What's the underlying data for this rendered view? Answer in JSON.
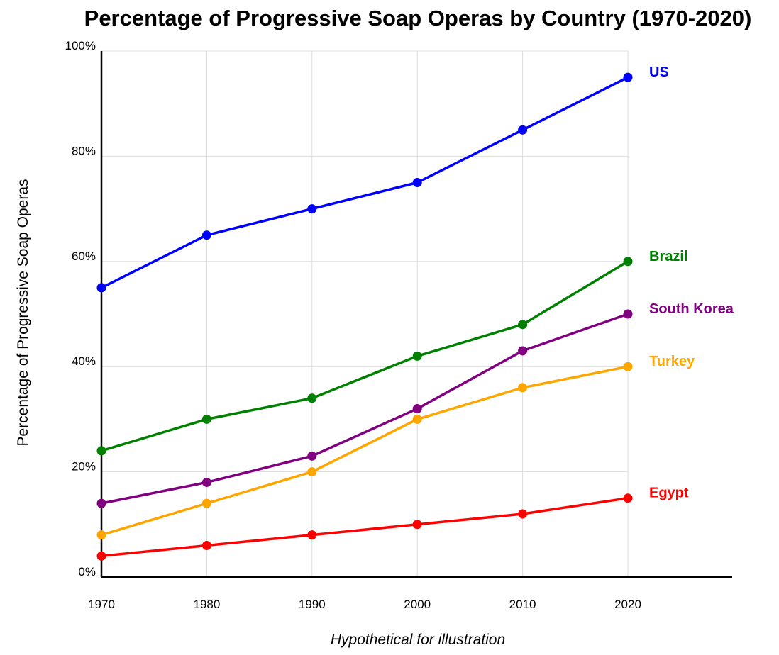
{
  "chart_data": {
    "type": "line",
    "title": "Percentage of Progressive Soap Operas by Country (1970-2020)",
    "xlabel": "",
    "ylabel": "Percentage of Progressive Soap Operas",
    "caption": "Hypothetical for illustration",
    "x": [
      1970,
      1980,
      1990,
      2000,
      2010,
      2020
    ],
    "xlim": [
      1970,
      2030
    ],
    "ylim": [
      0,
      100
    ],
    "ytick_values": [
      0,
      20,
      40,
      60,
      80,
      100
    ],
    "ytick_labels": [
      "0%",
      "20%",
      "40%",
      "60%",
      "80%",
      "100%"
    ],
    "grid": true,
    "legend": "inline labels at line ends",
    "series": [
      {
        "name": "US",
        "color": "#0000ff",
        "values": [
          55,
          65,
          70,
          75,
          85,
          95
        ]
      },
      {
        "name": "Brazil",
        "color": "#008000",
        "values": [
          24,
          30,
          34,
          42,
          48,
          60
        ]
      },
      {
        "name": "South Korea",
        "color": "#800080",
        "values": [
          14,
          18,
          23,
          32,
          43,
          50
        ]
      },
      {
        "name": "Turkey",
        "color": "#ffa500",
        "values": [
          8,
          14,
          20,
          30,
          36,
          40
        ]
      },
      {
        "name": "Egypt",
        "color": "#ff0000",
        "values": [
          4,
          6,
          8,
          10,
          12,
          15
        ]
      }
    ]
  }
}
